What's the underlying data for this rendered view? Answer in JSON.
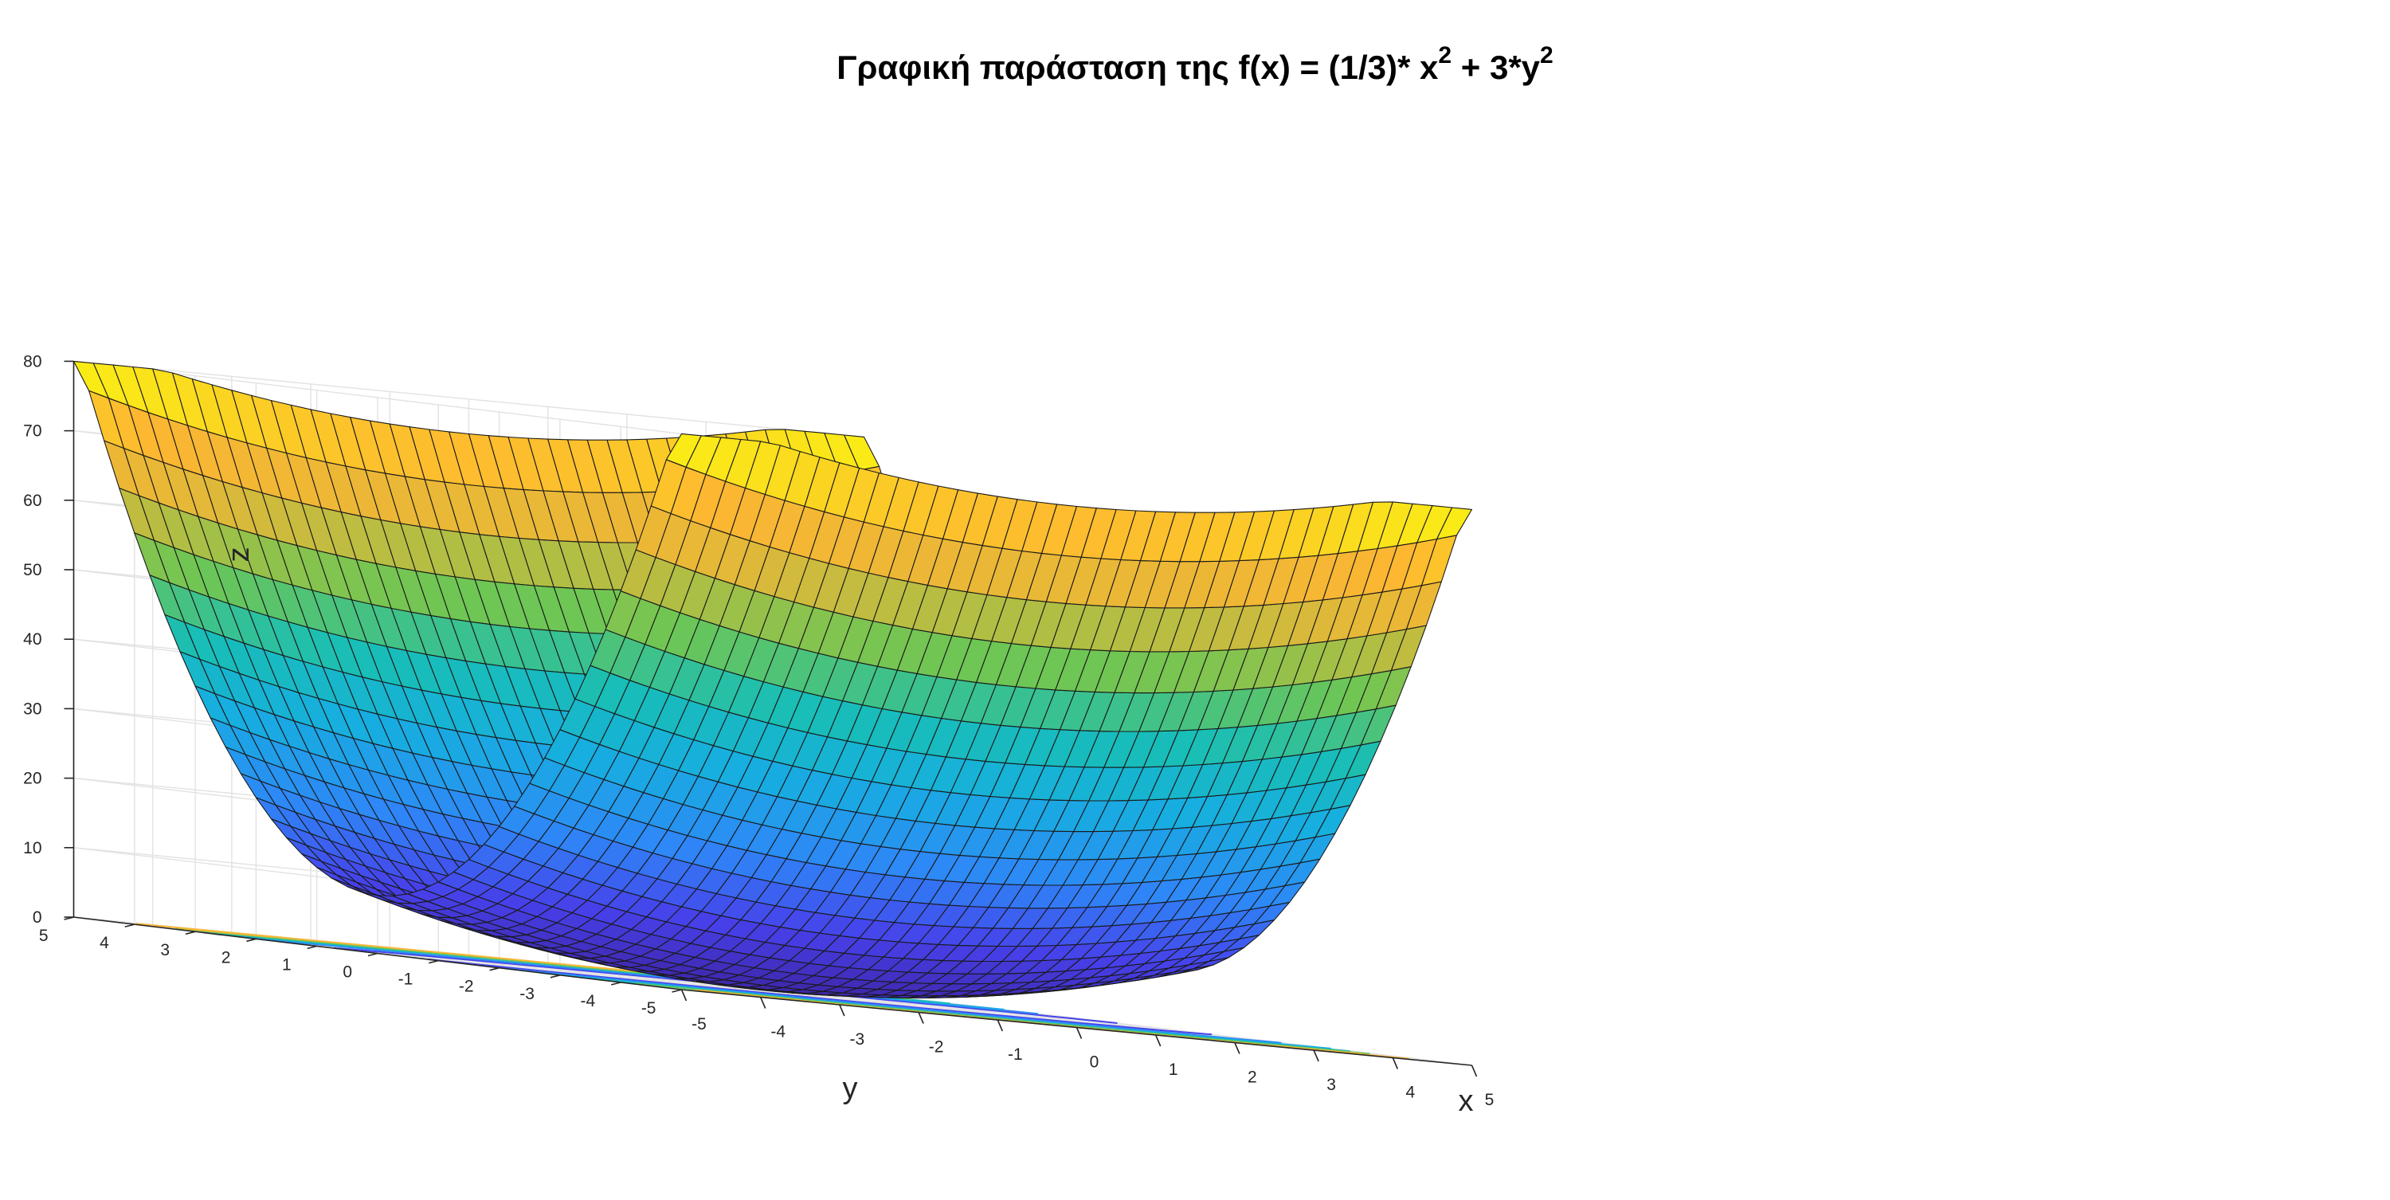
{
  "chart_data": {
    "type": "surface",
    "title": {
      "text": "Γραφική παράσταση της f(x) = (1/3)* x",
      "exp1": "2",
      "mid": " + 3*y",
      "exp2": "2"
    },
    "function": "(1/3)*x^2 + 3*y^2",
    "xlabel": "x",
    "ylabel": "y",
    "zlabel": "z",
    "xlim": [
      -5,
      5
    ],
    "ylim": [
      -5,
      5
    ],
    "zlim": [
      0,
      80
    ],
    "xticks": [
      -5,
      -4,
      -3,
      -2,
      -1,
      0,
      1,
      2,
      3,
      4,
      5
    ],
    "yticks": [
      -5,
      -4,
      -3,
      -2,
      -1,
      0,
      1,
      2,
      3,
      4,
      5
    ],
    "zticks": [
      0,
      10,
      20,
      30,
      40,
      50,
      60,
      70,
      80
    ],
    "grid": true,
    "colormap": "parula",
    "mesh_steps": 40,
    "contour_levels": [
      10,
      20,
      30,
      40,
      50,
      60,
      70,
      80
    ],
    "colors": {
      "low": "#3e26a8",
      "mid_blue": "#2b8cef",
      "cyan": "#16b9c8",
      "green": "#7ec844",
      "orange": "#f6ac3a",
      "high": "#f9fb0e",
      "edge": "#1a1a1a",
      "grid": "#e2e2e2"
    }
  }
}
